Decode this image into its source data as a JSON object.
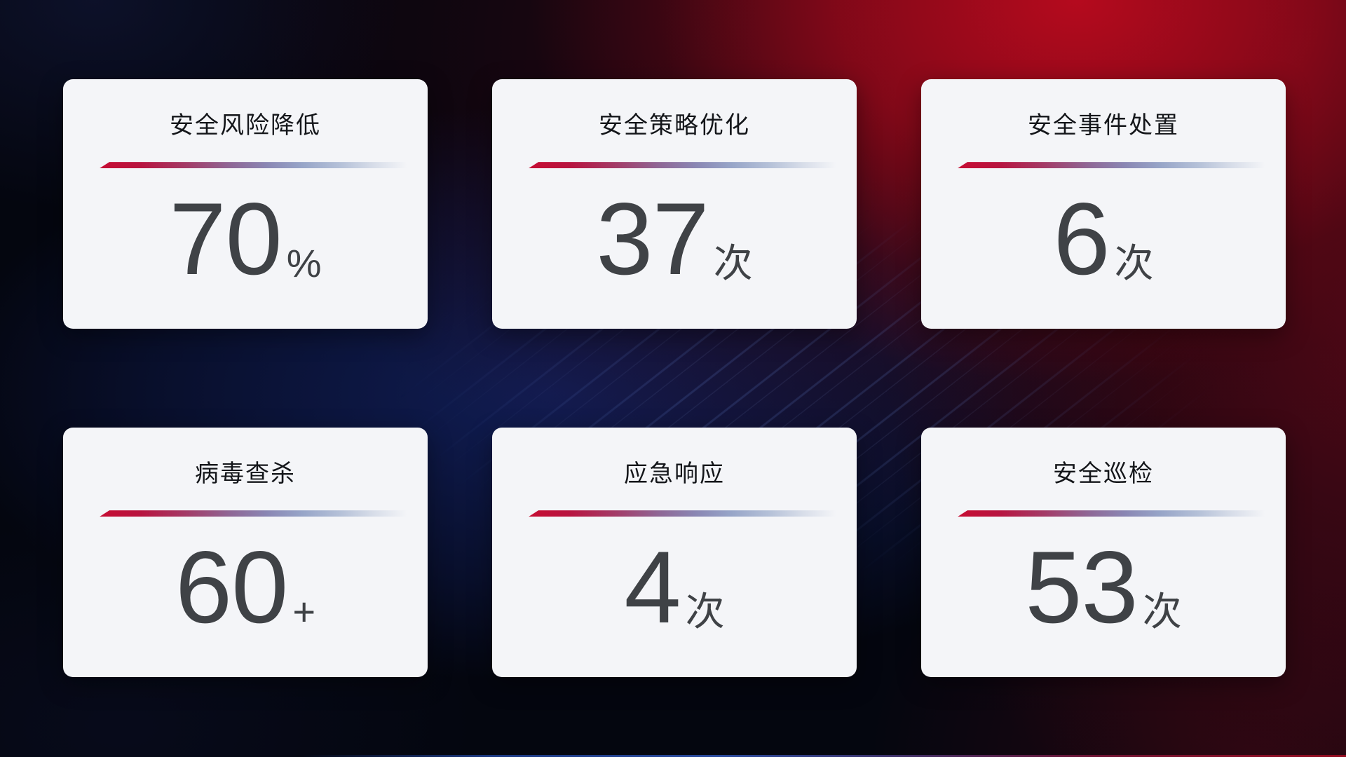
{
  "cards": [
    {
      "title": "安全风险降低",
      "value": "70",
      "unit": "%"
    },
    {
      "title": "安全策略优化",
      "value": "37",
      "unit": "次"
    },
    {
      "title": "安全事件处置",
      "value": "6",
      "unit": "次"
    },
    {
      "title": "病毒查杀",
      "value": "60",
      "unit": "+"
    },
    {
      "title": "应急响应",
      "value": "4",
      "unit": "次"
    },
    {
      "title": "安全巡检",
      "value": "53",
      "unit": "次"
    }
  ],
  "colors": {
    "card_background": "#f4f5f8",
    "title_text": "#14161a",
    "value_text": "#3f4246",
    "divider_red": "#c60d33",
    "divider_blue": "#97a5c8",
    "background_red": "#a60d20",
    "background_navy": "#101e55"
  }
}
